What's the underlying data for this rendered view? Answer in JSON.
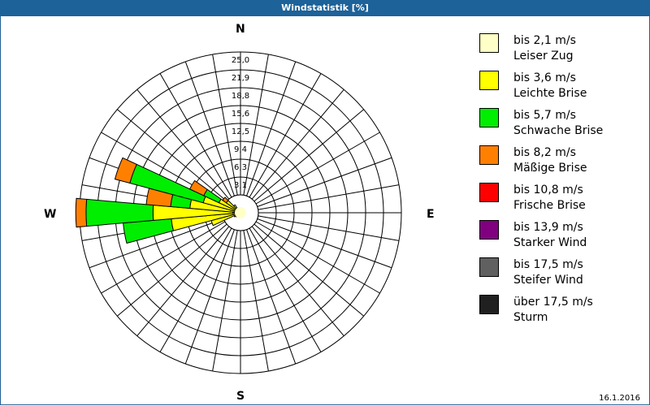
{
  "window": {
    "title": "Windstatistik [%]",
    "date": "16.1.2016"
  },
  "chart_data": {
    "type": "polar-bar (wind rose)",
    "title": "Windstatistik [%]",
    "rings": [
      "3,1",
      "6,3",
      "9,4",
      "12,5",
      "15,6",
      "18,8",
      "21,9",
      "25,0"
    ],
    "rmax": 25.0,
    "cardinals": {
      "N": "N",
      "E": "E",
      "S": "S",
      "W": "W"
    },
    "categories": [
      "bis 2,1 m/s",
      "bis 3,6 m/s",
      "bis 5,7 m/s",
      "bis 8,2 m/s",
      "bis 10,8 m/s",
      "bis 13,9 m/s",
      "bis 17,5 m/s",
      "über 17,5 m/s"
    ],
    "colors": [
      "#ffffc8",
      "#ffff00",
      "#00ee00",
      "#ff8000",
      "#ff0000",
      "#800080",
      "#606060",
      "#202020"
    ],
    "sectors_deg_width": 10,
    "sectors": [
      {
        "angle": 230,
        "stacks": [
          0.6,
          0.3
        ]
      },
      {
        "angle": 240,
        "stacks": [
          0.7,
          0.4
        ]
      },
      {
        "angle": 250,
        "stacks": [
          0.8,
          3.9
        ]
      },
      {
        "angle": 260,
        "stacks": [
          0.8,
          10.0,
          7.5
        ]
      },
      {
        "angle": 270,
        "stacks": [
          1.2,
          12.4,
          10.4,
          1.6
        ]
      },
      {
        "angle": 280,
        "stacks": [
          0.9,
          7.0,
          3.0,
          3.8
        ]
      },
      {
        "angle": 290,
        "stacks": [
          0.8,
          5.2,
          11.8,
          2.4
        ]
      },
      {
        "angle": 300,
        "stacks": [
          0.7,
          3.0,
          2.6,
          2.4
        ]
      },
      {
        "angle": 310,
        "stacks": [
          0.6,
          2.1,
          0.0,
          0.7
        ]
      },
      {
        "angle": 320,
        "stacks": [
          0.5,
          1.0
        ]
      },
      {
        "angle": 330,
        "stacks": [
          0.4,
          0.3
        ]
      }
    ],
    "center_calm": 1.0
  },
  "legend": [
    {
      "l1": "bis 2,1 m/s",
      "l2": "Leiser Zug"
    },
    {
      "l1": "bis 3,6 m/s",
      "l2": "Leichte Brise"
    },
    {
      "l1": "bis 5,7 m/s",
      "l2": "Schwache Brise"
    },
    {
      "l1": "bis 8,2 m/s",
      "l2": "Mäßige Brise"
    },
    {
      "l1": "bis 10,8 m/s",
      "l2": "Frische Brise"
    },
    {
      "l1": "bis 13,9 m/s",
      "l2": "Starker Wind"
    },
    {
      "l1": "bis 17,5 m/s",
      "l2": "Steifer Wind"
    },
    {
      "l1": "über 17,5 m/s",
      "l2": "Sturm"
    }
  ]
}
